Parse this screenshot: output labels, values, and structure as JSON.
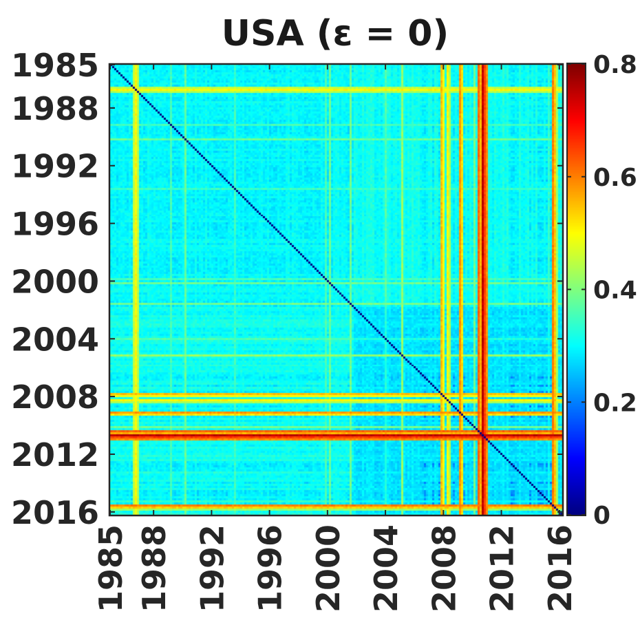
{
  "chart_data": {
    "type": "heatmap",
    "title": "USA (ε = 0)",
    "x_ticks": [
      "1985",
      "1988",
      "1992",
      "1996",
      "2000",
      "2004",
      "2008",
      "2012",
      "2016"
    ],
    "y_ticks": [
      "1985",
      "1988",
      "1992",
      "1996",
      "2000",
      "2004",
      "2008",
      "2012",
      "2016"
    ],
    "tick_years": [
      1985,
      1988,
      1992,
      1996,
      2000,
      2004,
      2008,
      2012,
      2016
    ],
    "year_range": [
      1985,
      2016.2
    ],
    "colormap": "jet",
    "colorbar": {
      "range": [
        0,
        0.8
      ],
      "tick_labels": [
        "0",
        "0.2",
        "0.4",
        "0.6",
        "0.8"
      ],
      "tick_values": [
        0,
        0.2,
        0.4,
        0.6,
        0.8
      ]
    },
    "diagonal_value": 0,
    "baseline_value": 0.3,
    "structure": {
      "base_early_period": 0.29,
      "base_late_period": 0.31,
      "regime_change_year": 2001.8,
      "late_block_start_year": 2006.5,
      "high_dissimilarity_years": [
        {
          "year": 1986.8,
          "value": 0.5
        },
        {
          "year": 1986.6,
          "value": 0.45
        },
        {
          "year": 2007.9,
          "value": 0.55
        },
        {
          "year": 2008.3,
          "value": 0.5
        },
        {
          "year": 2009.2,
          "value": 0.58
        },
        {
          "year": 2010.5,
          "value": 0.62
        },
        {
          "year": 2010.7,
          "value": 0.75
        },
        {
          "year": 2010.9,
          "value": 0.65
        },
        {
          "year": 2015.5,
          "value": 0.6
        }
      ]
    }
  }
}
